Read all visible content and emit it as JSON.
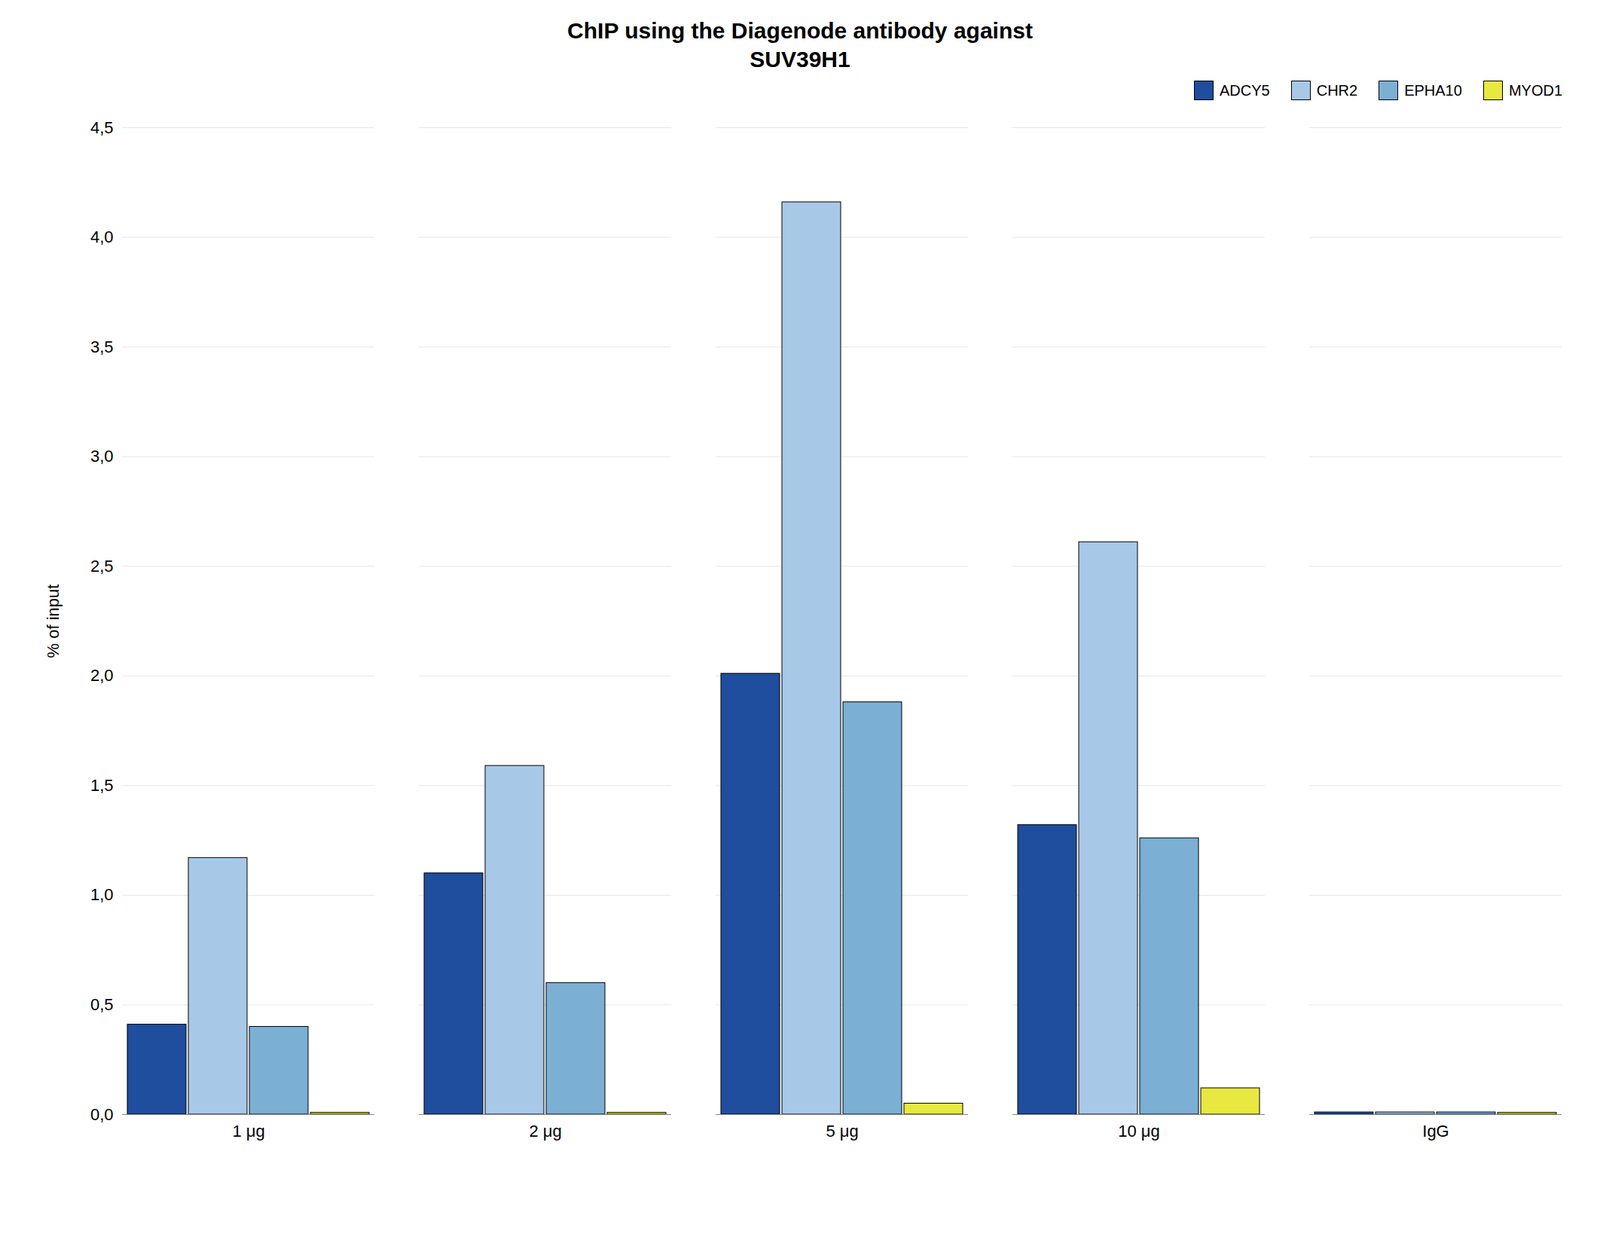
{
  "chart_data": {
    "type": "bar",
    "title": "ChIP using the Diagenode antibody against\nSUV39H1",
    "y_label": "% of input",
    "categories": [
      "1 μg",
      "2 μg",
      "5 μg",
      "10 μg",
      "IgG"
    ],
    "series": [
      {
        "name": "ADCY5",
        "color": "#1f4e9e",
        "values": [
          0.41,
          1.1,
          2.01,
          1.32,
          0.01
        ]
      },
      {
        "name": "CHR2",
        "color": "#a8c8e8",
        "values": [
          1.17,
          1.59,
          4.16,
          2.61,
          0.01
        ]
      },
      {
        "name": "EPHA10",
        "color": "#7bafd4",
        "values": [
          0.4,
          0.6,
          1.88,
          1.26,
          0.01
        ]
      },
      {
        "name": "MYOD1",
        "color": "#e8e840",
        "values": [
          0.008,
          0.008,
          0.05,
          0.12,
          0.008
        ]
      }
    ],
    "ylim": [
      0,
      4.5
    ],
    "yticks": [
      {
        "value": 0.0,
        "label": "0,0"
      },
      {
        "value": 0.5,
        "label": "0,5"
      },
      {
        "value": 1.0,
        "label": "1,0"
      },
      {
        "value": 1.5,
        "label": "1,5"
      },
      {
        "value": 2.0,
        "label": "2,0"
      },
      {
        "value": 2.5,
        "label": "2,5"
      },
      {
        "value": 3.0,
        "label": "3,0"
      },
      {
        "value": 3.5,
        "label": "3,5"
      },
      {
        "value": 4.0,
        "label": "4,0"
      },
      {
        "value": 4.5,
        "label": "4,5"
      }
    ],
    "grid": true,
    "legend": "upper right"
  }
}
